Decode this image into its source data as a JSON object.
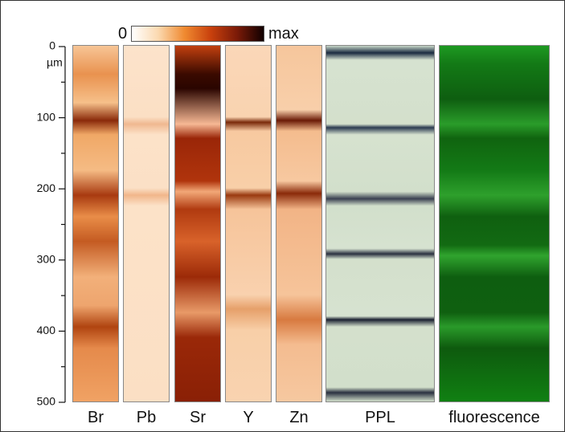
{
  "colorbar": {
    "min_label": "0",
    "max_label": "max"
  },
  "axis": {
    "unit": "µm",
    "ticks": [
      0,
      100,
      200,
      300,
      400,
      500
    ],
    "lim": [
      0,
      500
    ]
  },
  "panels": [
    {
      "label": "Br"
    },
    {
      "label": "Pb"
    },
    {
      "label": "Sr"
    },
    {
      "label": "Y"
    },
    {
      "label": "Zn"
    },
    {
      "label": "PPL"
    },
    {
      "label": "fluorescence"
    }
  ]
}
